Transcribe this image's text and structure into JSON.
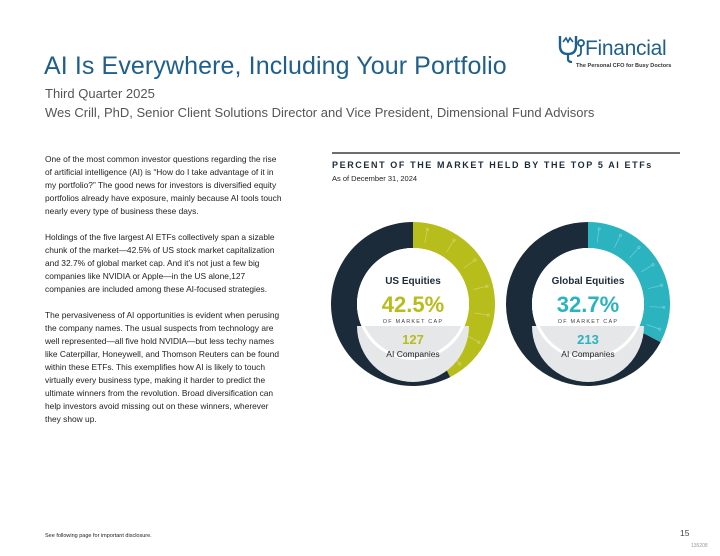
{
  "header": {
    "title": "AI Is Everywhere, Including Your Portfolio",
    "subtitle": "Third Quarter 2025",
    "author": "Wes Crill, PhD, Senior Client Solutions Director and Vice President, Dimensional Fund Advisors"
  },
  "logo": {
    "word": "Financial",
    "tagline": "The Personal CFO for Busy Doctors",
    "brand_color": "#1f5f8b"
  },
  "body": {
    "paragraphs": [
      "One of the most common investor questions regarding the rise of artificial intelligence (AI) is “How do I take advantage of it in my portfolio?” The good news for investors is diversified equity portfolios already have exposure, mainly because AI tools touch nearly every type of business these days.",
      "Holdings of the five largest AI ETFs collectively span a sizable chunk of the market—42.5% of US stock market capitalization and 32.7% of global market cap. And it’s not just a few big companies like NVIDIA or Apple—in the US alone,127 companies are included among these AI-focused strategies.",
      "The pervasiveness of AI opportunities is evident when perusing the company names. The usual suspects from technology are well represented—all five hold NVIDIA—but less techy names like Caterpillar, Honeywell, and Thomson Reuters can be found within these ETFs. This exemplifies how AI is likely to touch virtually every business type, making it harder to predict the ultimate winners from the revolution. Broad diversification can help investors avoid missing out on these winners, wherever they show up."
    ]
  },
  "chart": {
    "heading": "PERCENT OF THE MARKET HELD BY THE TOP 5 AI ETFs",
    "date": "As of December 31, 2024"
  },
  "chart_data": [
    {
      "type": "pie",
      "title": "US Equities",
      "value_label": "42.5%",
      "sublabel": "OF MARKET CAP",
      "count_label": "127",
      "count_caption": "AI Companies",
      "values": [
        42.5,
        57.5
      ],
      "highlight_color": "#b7bd1a",
      "rest_color": "#1c2b3a"
    },
    {
      "type": "pie",
      "title": "Global Equities",
      "value_label": "32.7%",
      "sublabel": "OF MARKET CAP",
      "count_label": "213",
      "count_caption": "AI Companies",
      "values": [
        32.7,
        67.3
      ],
      "highlight_color": "#2bb3c0",
      "rest_color": "#1c2b3a"
    }
  ],
  "footer": {
    "note": "See following page for important disclosure.",
    "page_number": "15",
    "doc_code": "135208"
  }
}
